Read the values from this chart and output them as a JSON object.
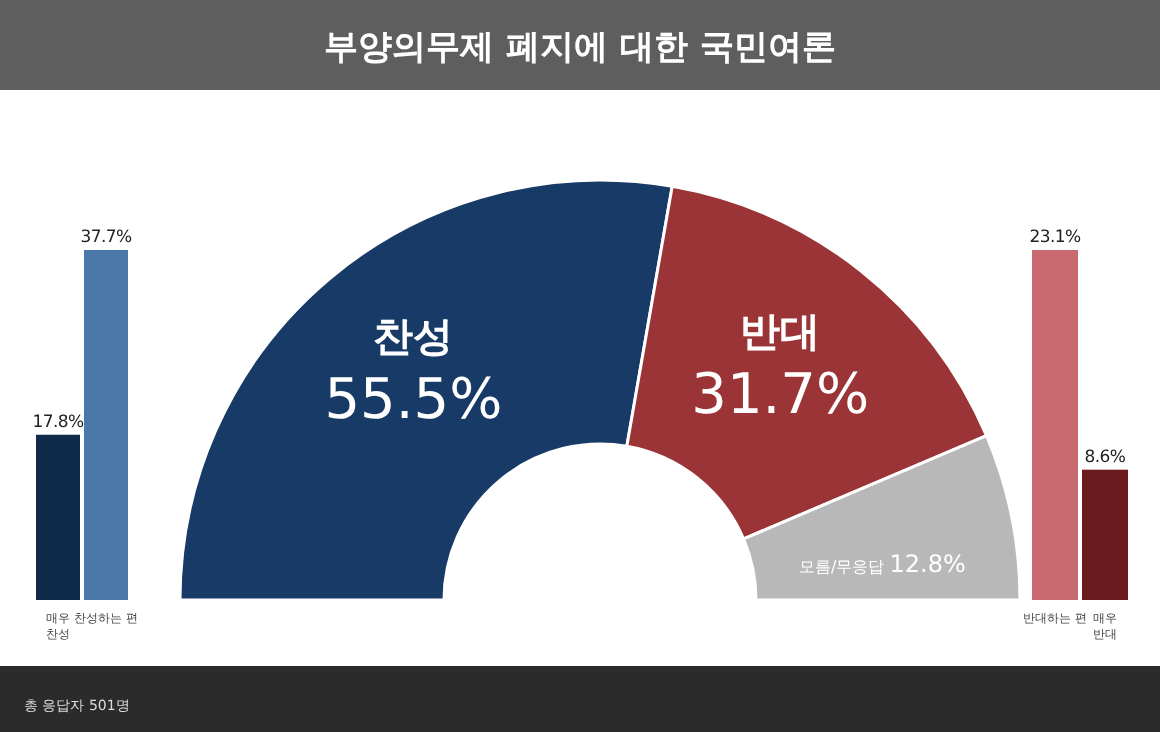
{
  "chart_data": [
    {
      "type": "bar",
      "categories": [
        "매우\n찬성",
        "찬성하는 편"
      ],
      "values": [
        17.8,
        37.7
      ],
      "colors": [
        "#102a4c",
        "#4a78a8"
      ],
      "value_labels": [
        "17.8%",
        "37.7%"
      ]
    },
    {
      "type": "donut",
      "title": "부양의무제 폐지에 대한 국민여론",
      "categories": [
        "찬성",
        "반대",
        "모름/무응답"
      ],
      "values": [
        55.5,
        31.7,
        12.8
      ],
      "colors": [
        "#183a66",
        "#9a3436",
        "#b8b8b8"
      ],
      "value_labels": [
        "55.5%",
        "31.7%",
        "12.8%"
      ],
      "annotations": [
        "총 응답자 501명"
      ]
    },
    {
      "type": "bar",
      "categories": [
        "반대하는 편",
        "매우\n반대"
      ],
      "values": [
        23.1,
        8.6
      ],
      "colors": [
        "#c86a6f",
        "#6b1a1e"
      ],
      "value_labels": [
        "23.1%",
        "8.6%"
      ]
    }
  ]
}
